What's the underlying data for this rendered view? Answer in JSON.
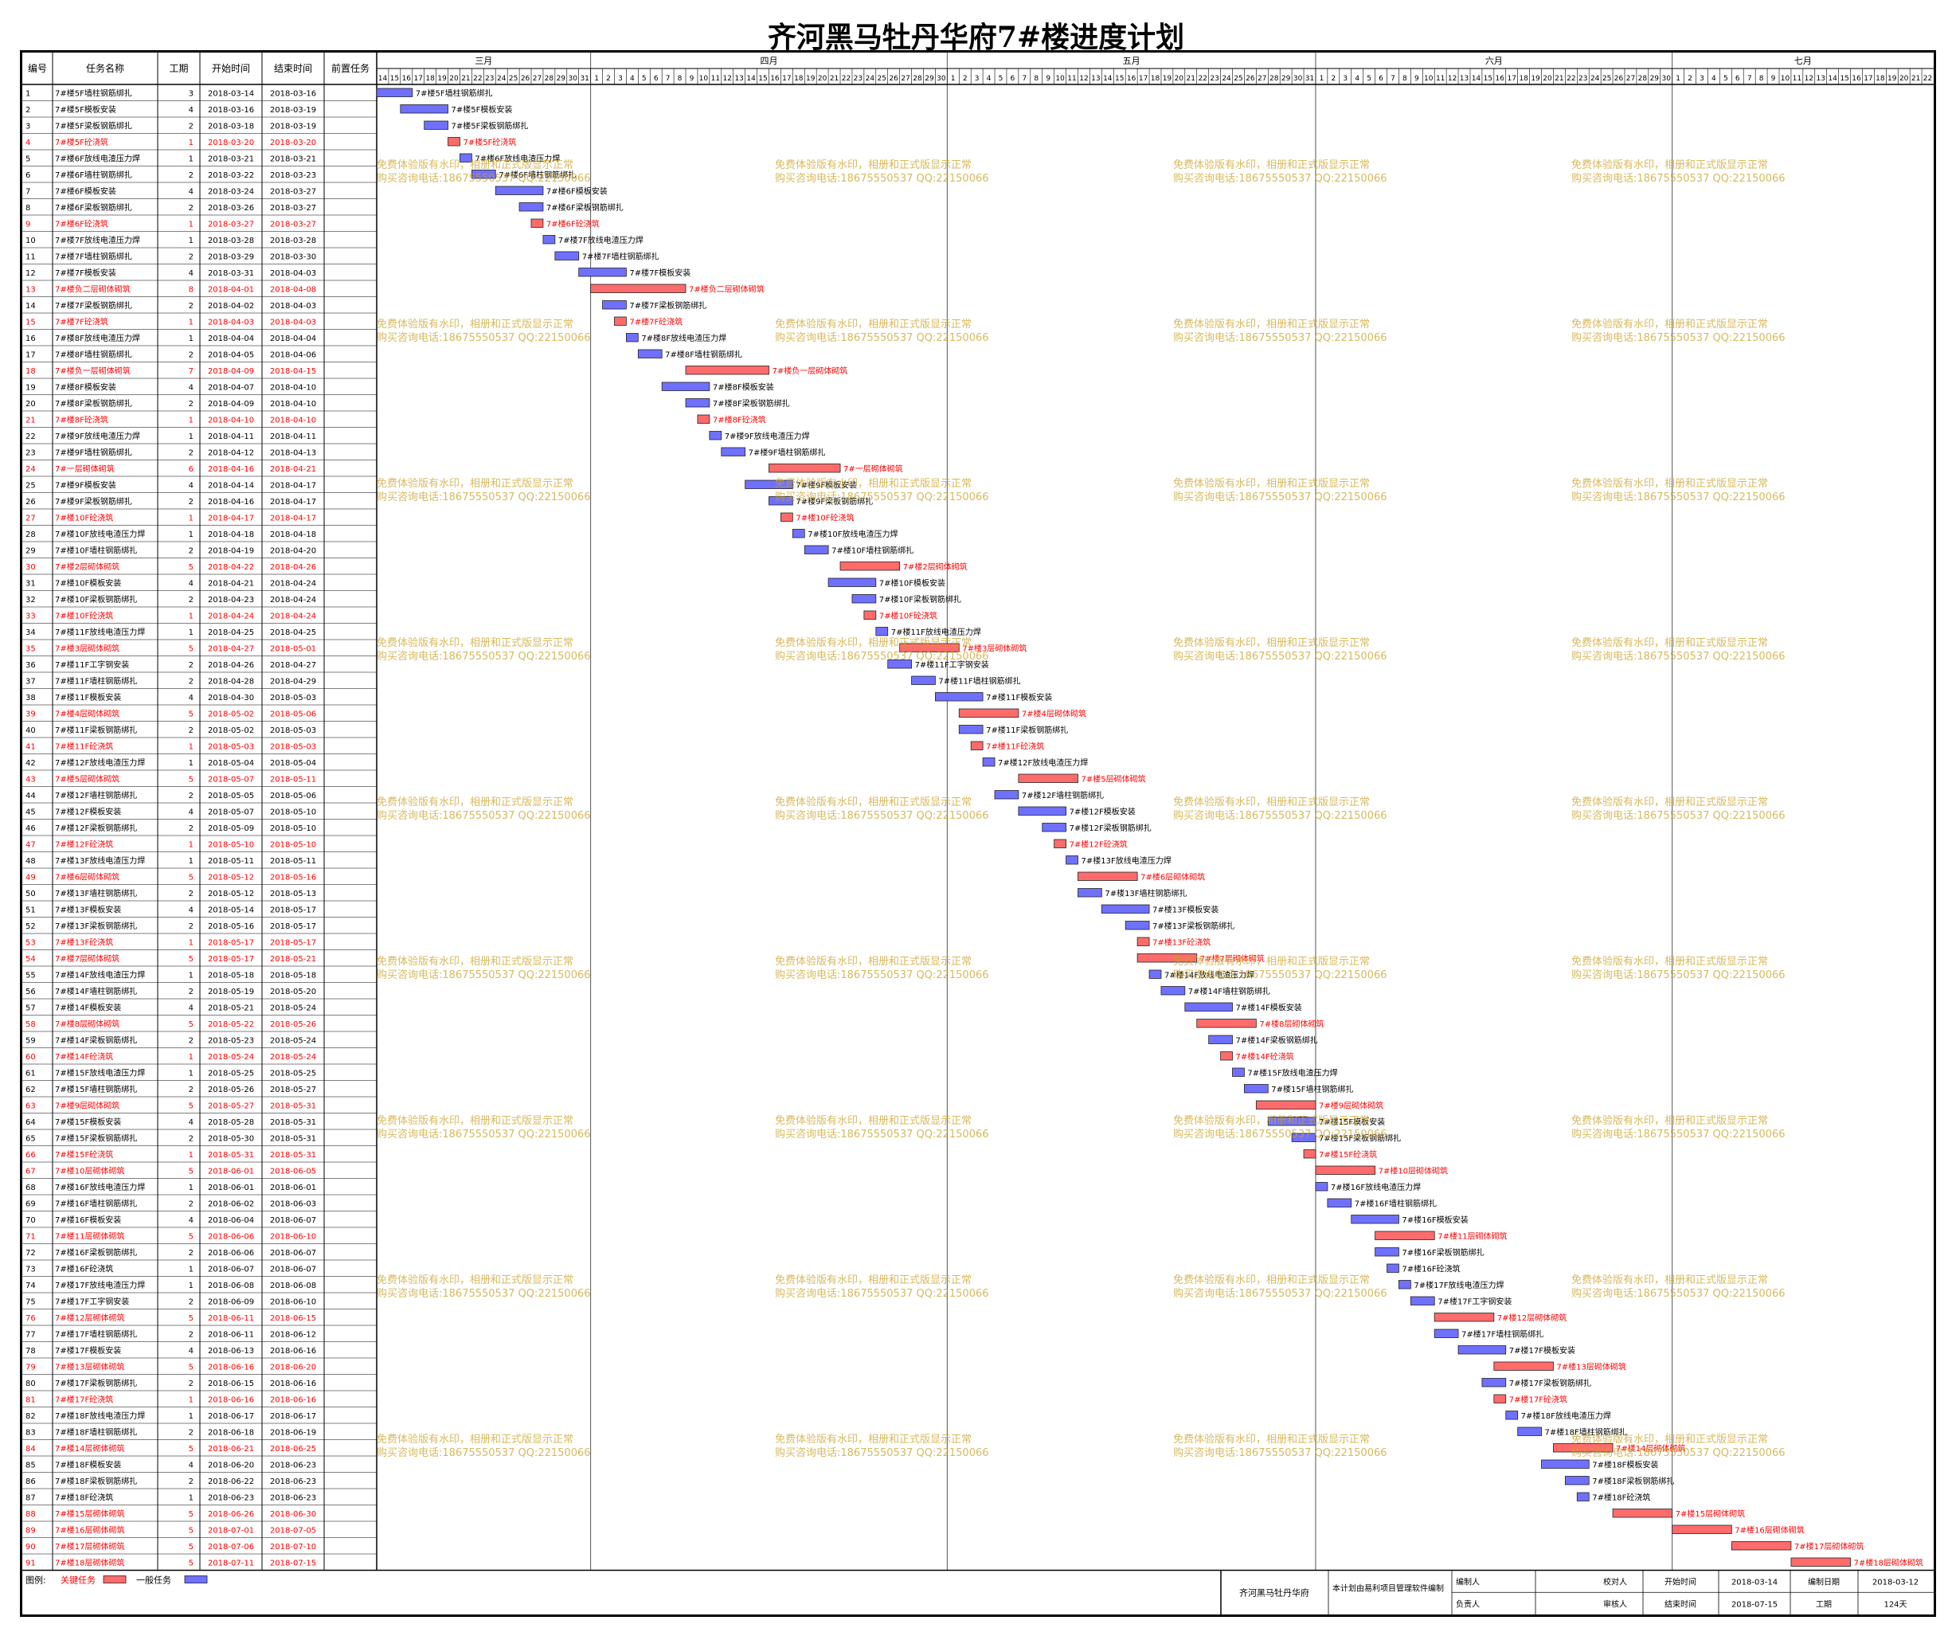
{
  "title": "齐河黑马牡丹华府7#楼进度计划",
  "columns": {
    "id": "编号",
    "name": "任务名称",
    "duration": "工期",
    "start": "开始时间",
    "end": "结束时间",
    "pred": "前置任务"
  },
  "months": [
    {
      "label": "三月",
      "days": [
        14,
        15,
        16,
        17,
        18,
        19,
        20,
        21,
        22,
        23,
        24,
        25,
        26,
        27,
        28,
        29,
        30,
        31
      ]
    },
    {
      "label": "四月",
      "days": 30
    },
    {
      "label": "五月",
      "days": 31
    },
    {
      "label": "六月",
      "days": 30
    },
    {
      "label": "七月",
      "days": 22
    }
  ],
  "colors": {
    "critical": "#ff6b6b",
    "normal": "#7070ff",
    "critical_text": "#ff0000",
    "watermark": "#c9a227"
  },
  "watermark": {
    "line1": "免费体验版有水印，相册和正式版显示正常",
    "line2": "购买咨询电话:18675550537 QQ:22150066"
  },
  "chart_data": {
    "type": "gantt",
    "x_start": "2018-03-14",
    "x_end": "2018-07-22",
    "tasks": [
      [
        "1",
        "7#楼5F墙柱钢筋绑扎",
        3,
        "2018-03-14",
        "2018-03-16",
        0
      ],
      [
        "2",
        "7#楼5F模板安装",
        4,
        "2018-03-16",
        "2018-03-19",
        0
      ],
      [
        "3",
        "7#楼5F梁板钢筋绑扎",
        2,
        "2018-03-18",
        "2018-03-19",
        0
      ],
      [
        "4",
        "7#楼5F砼浇筑",
        1,
        "2018-03-20",
        "2018-03-20",
        1
      ],
      [
        "5",
        "7#楼6F放线电渣压力焊",
        1,
        "2018-03-21",
        "2018-03-21",
        0
      ],
      [
        "6",
        "7#楼6F墙柱钢筋绑扎",
        2,
        "2018-03-22",
        "2018-03-23",
        0
      ],
      [
        "7",
        "7#楼6F模板安装",
        4,
        "2018-03-24",
        "2018-03-27",
        0
      ],
      [
        "8",
        "7#楼6F梁板钢筋绑扎",
        2,
        "2018-03-26",
        "2018-03-27",
        0
      ],
      [
        "9",
        "7#楼6F砼浇筑",
        1,
        "2018-03-27",
        "2018-03-27",
        1
      ],
      [
        "10",
        "7#楼7F放线电渣压力焊",
        1,
        "2018-03-28",
        "2018-03-28",
        0
      ],
      [
        "11",
        "7#楼7F墙柱钢筋绑扎",
        2,
        "2018-03-29",
        "2018-03-30",
        0
      ],
      [
        "12",
        "7#楼7F模板安装",
        4,
        "2018-03-31",
        "2018-04-03",
        0
      ],
      [
        "13",
        "7#楼负二层砌体砌筑",
        8,
        "2018-04-01",
        "2018-04-08",
        1
      ],
      [
        "14",
        "7#楼7F梁板钢筋绑扎",
        2,
        "2018-04-02",
        "2018-04-03",
        0
      ],
      [
        "15",
        "7#楼7F砼浇筑",
        1,
        "2018-04-03",
        "2018-04-03",
        1
      ],
      [
        "16",
        "7#楼8F放线电渣压力焊",
        1,
        "2018-04-04",
        "2018-04-04",
        0
      ],
      [
        "17",
        "7#楼8F墙柱钢筋绑扎",
        2,
        "2018-04-05",
        "2018-04-06",
        0
      ],
      [
        "18",
        "7#楼负一层砌体砌筑",
        7,
        "2018-04-09",
        "2018-04-15",
        1
      ],
      [
        "19",
        "7#楼8F模板安装",
        4,
        "2018-04-07",
        "2018-04-10",
        0
      ],
      [
        "20",
        "7#楼8F梁板钢筋绑扎",
        2,
        "2018-04-09",
        "2018-04-10",
        0
      ],
      [
        "21",
        "7#楼8F砼浇筑",
        1,
        "2018-04-10",
        "2018-04-10",
        1
      ],
      [
        "22",
        "7#楼9F放线电渣压力焊",
        1,
        "2018-04-11",
        "2018-04-11",
        0
      ],
      [
        "23",
        "7#楼9F墙柱钢筋绑扎",
        2,
        "2018-04-12",
        "2018-04-13",
        0
      ],
      [
        "24",
        "7#一层砌体砌筑",
        6,
        "2018-04-16",
        "2018-04-21",
        1
      ],
      [
        "25",
        "7#楼9F模板安装",
        4,
        "2018-04-14",
        "2018-04-17",
        0
      ],
      [
        "26",
        "7#楼9F梁板钢筋绑扎",
        2,
        "2018-04-16",
        "2018-04-17",
        0
      ],
      [
        "27",
        "7#楼10F砼浇筑",
        1,
        "2018-04-17",
        "2018-04-17",
        1
      ],
      [
        "28",
        "7#楼10F放线电渣压力焊",
        1,
        "2018-04-18",
        "2018-04-18",
        0
      ],
      [
        "29",
        "7#楼10F墙柱钢筋绑扎",
        2,
        "2018-04-19",
        "2018-04-20",
        0
      ],
      [
        "30",
        "7#楼2层砌体砌筑",
        5,
        "2018-04-22",
        "2018-04-26",
        1
      ],
      [
        "31",
        "7#楼10F模板安装",
        4,
        "2018-04-21",
        "2018-04-24",
        0
      ],
      [
        "32",
        "7#楼10F梁板钢筋绑扎",
        2,
        "2018-04-23",
        "2018-04-24",
        0
      ],
      [
        "33",
        "7#楼10F砼浇筑",
        1,
        "2018-04-24",
        "2018-04-24",
        1
      ],
      [
        "34",
        "7#楼11F放线电渣压力焊",
        1,
        "2018-04-25",
        "2018-04-25",
        0
      ],
      [
        "35",
        "7#楼3层砌体砌筑",
        5,
        "2018-04-27",
        "2018-05-01",
        1
      ],
      [
        "36",
        "7#楼11F工字钢安装",
        2,
        "2018-04-26",
        "2018-04-27",
        0
      ],
      [
        "37",
        "7#楼11F墙柱钢筋绑扎",
        2,
        "2018-04-28",
        "2018-04-29",
        0
      ],
      [
        "38",
        "7#楼11F模板安装",
        4,
        "2018-04-30",
        "2018-05-03",
        0
      ],
      [
        "39",
        "7#楼4层砌体砌筑",
        5,
        "2018-05-02",
        "2018-05-06",
        1
      ],
      [
        "40",
        "7#楼11F梁板钢筋绑扎",
        2,
        "2018-05-02",
        "2018-05-03",
        0
      ],
      [
        "41",
        "7#楼11F砼浇筑",
        1,
        "2018-05-03",
        "2018-05-03",
        1
      ],
      [
        "42",
        "7#楼12F放线电渣压力焊",
        1,
        "2018-05-04",
        "2018-05-04",
        0
      ],
      [
        "43",
        "7#楼5层砌体砌筑",
        5,
        "2018-05-07",
        "2018-05-11",
        1
      ],
      [
        "44",
        "7#楼12F墙柱钢筋绑扎",
        2,
        "2018-05-05",
        "2018-05-06",
        0
      ],
      [
        "45",
        "7#楼12F模板安装",
        4,
        "2018-05-07",
        "2018-05-10",
        0
      ],
      [
        "46",
        "7#楼12F梁板钢筋绑扎",
        2,
        "2018-05-09",
        "2018-05-10",
        0
      ],
      [
        "47",
        "7#楼12F砼浇筑",
        1,
        "2018-05-10",
        "2018-05-10",
        1
      ],
      [
        "48",
        "7#楼13F放线电渣压力焊",
        1,
        "2018-05-11",
        "2018-05-11",
        0
      ],
      [
        "49",
        "7#楼6层砌体砌筑",
        5,
        "2018-05-12",
        "2018-05-16",
        1
      ],
      [
        "50",
        "7#楼13F墙柱钢筋绑扎",
        2,
        "2018-05-12",
        "2018-05-13",
        0
      ],
      [
        "51",
        "7#楼13F模板安装",
        4,
        "2018-05-14",
        "2018-05-17",
        0
      ],
      [
        "52",
        "7#楼13F梁板钢筋绑扎",
        2,
        "2018-05-16",
        "2018-05-17",
        0
      ],
      [
        "53",
        "7#楼13F砼浇筑",
        1,
        "2018-05-17",
        "2018-05-17",
        1
      ],
      [
        "54",
        "7#楼7层砌体砌筑",
        5,
        "2018-05-17",
        "2018-05-21",
        1
      ],
      [
        "55",
        "7#楼14F放线电渣压力焊",
        1,
        "2018-05-18",
        "2018-05-18",
        0
      ],
      [
        "56",
        "7#楼14F墙柱钢筋绑扎",
        2,
        "2018-05-19",
        "2018-05-20",
        0
      ],
      [
        "57",
        "7#楼14F模板安装",
        4,
        "2018-05-21",
        "2018-05-24",
        0
      ],
      [
        "58",
        "7#楼8层砌体砌筑",
        5,
        "2018-05-22",
        "2018-05-26",
        1
      ],
      [
        "59",
        "7#楼14F梁板钢筋绑扎",
        2,
        "2018-05-23",
        "2018-05-24",
        0
      ],
      [
        "60",
        "7#楼14F砼浇筑",
        1,
        "2018-05-24",
        "2018-05-24",
        1
      ],
      [
        "61",
        "7#楼15F放线电渣压力焊",
        1,
        "2018-05-25",
        "2018-05-25",
        0
      ],
      [
        "62",
        "7#楼15F墙柱钢筋绑扎",
        2,
        "2018-05-26",
        "2018-05-27",
        0
      ],
      [
        "63",
        "7#楼9层砌体砌筑",
        5,
        "2018-05-27",
        "2018-05-31",
        1
      ],
      [
        "64",
        "7#楼15F模板安装",
        4,
        "2018-05-28",
        "2018-05-31",
        0
      ],
      [
        "65",
        "7#楼15F梁板钢筋绑扎",
        2,
        "2018-05-30",
        "2018-05-31",
        0
      ],
      [
        "66",
        "7#楼15F砼浇筑",
        1,
        "2018-05-31",
        "2018-05-31",
        1
      ],
      [
        "67",
        "7#楼10层砌体砌筑",
        5,
        "2018-06-01",
        "2018-06-05",
        1
      ],
      [
        "68",
        "7#楼16F放线电渣压力焊",
        1,
        "2018-06-01",
        "2018-06-01",
        0
      ],
      [
        "69",
        "7#楼16F墙柱钢筋绑扎",
        2,
        "2018-06-02",
        "2018-06-03",
        0
      ],
      [
        "70",
        "7#楼16F模板安装",
        4,
        "2018-06-04",
        "2018-06-07",
        0
      ],
      [
        "71",
        "7#楼11层砌体砌筑",
        5,
        "2018-06-06",
        "2018-06-10",
        1
      ],
      [
        "72",
        "7#楼16F梁板钢筋绑扎",
        2,
        "2018-06-06",
        "2018-06-07",
        0
      ],
      [
        "73",
        "7#楼16F砼浇筑",
        1,
        "2018-06-07",
        "2018-06-07",
        0
      ],
      [
        "74",
        "7#楼17F放线电渣压力焊",
        1,
        "2018-06-08",
        "2018-06-08",
        0
      ],
      [
        "75",
        "7#楼17F工字钢安装",
        2,
        "2018-06-09",
        "2018-06-10",
        0
      ],
      [
        "76",
        "7#楼12层砌体砌筑",
        5,
        "2018-06-11",
        "2018-06-15",
        1
      ],
      [
        "77",
        "7#楼17F墙柱钢筋绑扎",
        2,
        "2018-06-11",
        "2018-06-12",
        0
      ],
      [
        "78",
        "7#楼17F模板安装",
        4,
        "2018-06-13",
        "2018-06-16",
        0
      ],
      [
        "79",
        "7#楼13层砌体砌筑",
        5,
        "2018-06-16",
        "2018-06-20",
        1
      ],
      [
        "80",
        "7#楼17F梁板钢筋绑扎",
        2,
        "2018-06-15",
        "2018-06-16",
        0
      ],
      [
        "81",
        "7#楼17F砼浇筑",
        1,
        "2018-06-16",
        "2018-06-16",
        1
      ],
      [
        "82",
        "7#楼18F放线电渣压力焊",
        1,
        "2018-06-17",
        "2018-06-17",
        0
      ],
      [
        "83",
        "7#楼18F墙柱钢筋绑扎",
        2,
        "2018-06-18",
        "2018-06-19",
        0
      ],
      [
        "84",
        "7#楼14层砌体砌筑",
        5,
        "2018-06-21",
        "2018-06-25",
        1
      ],
      [
        "85",
        "7#楼18F模板安装",
        4,
        "2018-06-20",
        "2018-06-23",
        0
      ],
      [
        "86",
        "7#楼18F梁板钢筋绑扎",
        2,
        "2018-06-22",
        "2018-06-23",
        0
      ],
      [
        "87",
        "7#楼18F砼浇筑",
        1,
        "2018-06-23",
        "2018-06-23",
        0
      ],
      [
        "88",
        "7#楼15层砌体砌筑",
        5,
        "2018-06-26",
        "2018-06-30",
        1
      ],
      [
        "89",
        "7#楼16层砌体砌筑",
        5,
        "2018-07-01",
        "2018-07-05",
        1
      ],
      [
        "90",
        "7#楼17层砌体砌筑",
        5,
        "2018-07-06",
        "2018-07-10",
        1
      ],
      [
        "91",
        "7#楼18层砌体砌筑",
        5,
        "2018-07-11",
        "2018-07-15",
        1
      ]
    ]
  },
  "legend": {
    "label": "图例:",
    "critical": "关键任务",
    "normal": "一般任务"
  },
  "footer": {
    "project": "齐河黑马牡丹华府",
    "note": "本计划由易利项目管理软件编制",
    "compiler_label": "编制人",
    "checker_label": "校对人",
    "owner_label": "负责人",
    "reviewer_label": "审核人",
    "start_label": "开始时间",
    "start_value": "2018-03-14",
    "date_label": "编制日期",
    "date_value": "2018-03-12",
    "end_label": "结束时间",
    "end_value": "2018-07-15",
    "duration_label": "工期",
    "duration_value": "124天"
  }
}
